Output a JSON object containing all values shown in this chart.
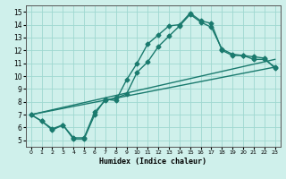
{
  "xlabel": "Humidex (Indice chaleur)",
  "xlim": [
    -0.5,
    23.5
  ],
  "ylim": [
    4.5,
    15.5
  ],
  "xticks": [
    0,
    1,
    2,
    3,
    4,
    5,
    6,
    7,
    8,
    9,
    10,
    11,
    12,
    13,
    14,
    15,
    16,
    17,
    18,
    19,
    20,
    21,
    22,
    23
  ],
  "yticks": [
    5,
    6,
    7,
    8,
    9,
    10,
    11,
    12,
    13,
    14,
    15
  ],
  "bg_color": "#cff0eb",
  "grid_color": "#9fd8d0",
  "line_color": "#1a7a6e",
  "line1_x": [
    0,
    1,
    2,
    3,
    4,
    5,
    6,
    7,
    8,
    9,
    10,
    11,
    12,
    13,
    14,
    15,
    16,
    17,
    18,
    19,
    20,
    21,
    22,
    23
  ],
  "line1_y": [
    7.0,
    6.5,
    5.8,
    6.2,
    5.1,
    5.1,
    7.0,
    8.2,
    8.1,
    9.7,
    11.0,
    12.5,
    13.2,
    13.9,
    14.0,
    14.9,
    14.3,
    14.1,
    12.0,
    11.6,
    11.6,
    11.3,
    11.3,
    10.7
  ],
  "line2_x": [
    0,
    1,
    2,
    3,
    4,
    5,
    6,
    7,
    8,
    9,
    10,
    11,
    12,
    13,
    14,
    15,
    16,
    17,
    18,
    19,
    20,
    21,
    22,
    23
  ],
  "line2_y": [
    7.0,
    6.5,
    5.9,
    6.2,
    5.2,
    5.2,
    7.2,
    8.1,
    8.3,
    8.6,
    10.3,
    11.1,
    12.3,
    13.1,
    13.9,
    14.8,
    14.2,
    13.8,
    12.1,
    11.7,
    11.6,
    11.5,
    11.4,
    10.6
  ],
  "line3_x": [
    0,
    23
  ],
  "line3_y": [
    7.0,
    10.7
  ],
  "line4_x": [
    0,
    23
  ],
  "line4_y": [
    7.0,
    11.3
  ],
  "marker_size": 2.5,
  "linewidth": 1.0
}
